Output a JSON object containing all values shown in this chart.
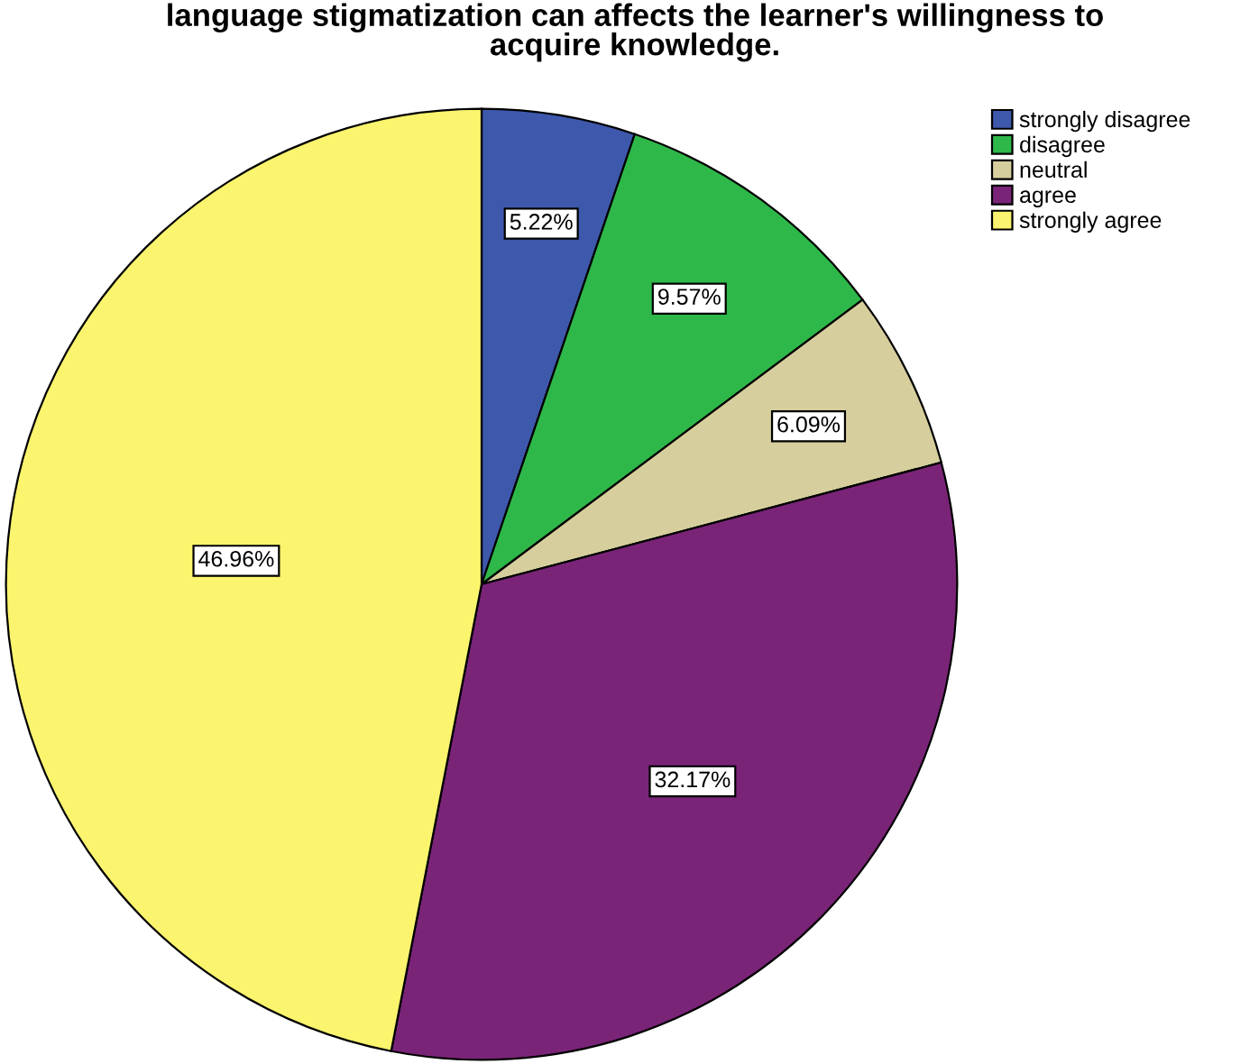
{
  "chart_data": {
    "type": "pie",
    "title": "language stigmatization can affects the learner's willingness to\nacquire knowledge.",
    "categories": [
      "strongly disagree",
      "disagree",
      "neutral",
      "agree",
      "strongly agree"
    ],
    "values": [
      5.22,
      9.57,
      6.09,
      32.17,
      46.96
    ],
    "colors": [
      "#3e58ac",
      "#2fb84a",
      "#d6cf9d",
      "#7a2478",
      "#fbf46e"
    ],
    "value_labels": [
      "5.22%",
      "9.57%",
      "6.09%",
      "32.17%",
      "46.96%"
    ],
    "legend": "top right"
  }
}
